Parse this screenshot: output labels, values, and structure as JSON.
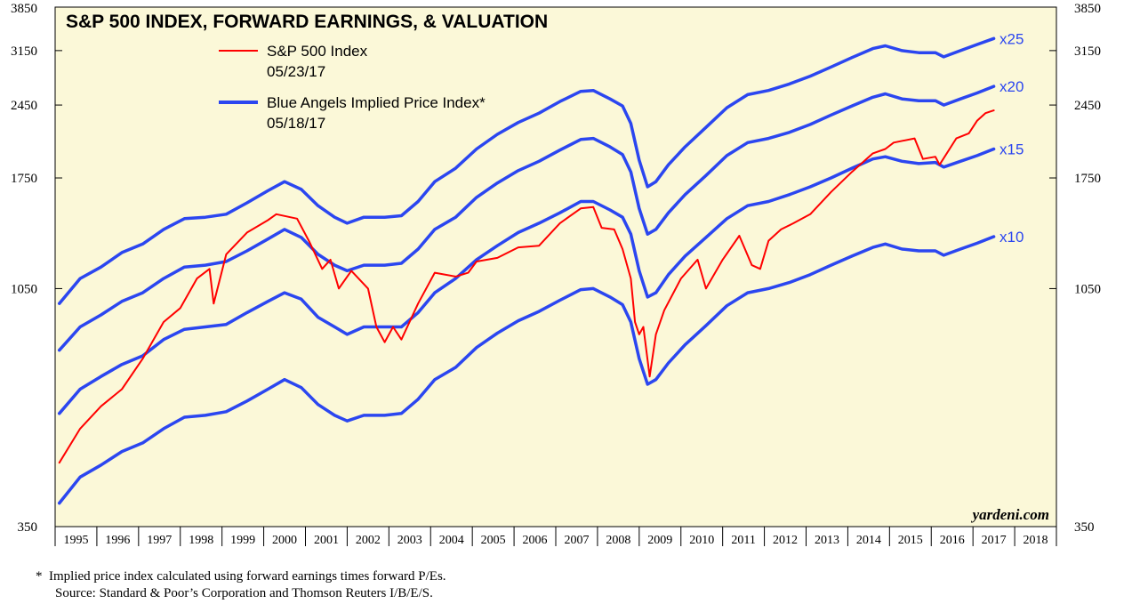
{
  "chart_data": {
    "type": "line",
    "title": "S&P 500 INDEX, FORWARD EARNINGS, & VALUATION",
    "y_scale": "log",
    "ylim": [
      350,
      3850
    ],
    "y_ticks": [
      "3850",
      "3150",
      "2450",
      "1750",
      "1050",
      "350"
    ],
    "x_range": [
      1994.9,
      2018.9
    ],
    "x_tick_labels": [
      "1995",
      "1996",
      "1997",
      "1998",
      "1999",
      "2000",
      "2001",
      "2002",
      "2003",
      "2004",
      "2005",
      "2006",
      "2007",
      "2008",
      "2009",
      "2010",
      "2011",
      "2012",
      "2013",
      "2014",
      "2015",
      "2016",
      "2017",
      "2018"
    ],
    "legend": [
      {
        "name": "S&P 500 Index",
        "date": "05/23/17",
        "color": "#ff0000"
      },
      {
        "name": "Blue Angels Implied Price Index*",
        "date": "05/18/17",
        "color": "#2b46f0"
      }
    ],
    "series": [
      {
        "name": "S&P 500 Index",
        "color": "#ff0000",
        "points": [
          [
            1995.0,
            470
          ],
          [
            1995.5,
            550
          ],
          [
            1996.0,
            610
          ],
          [
            1996.5,
            660
          ],
          [
            1997.0,
            760
          ],
          [
            1997.5,
            900
          ],
          [
            1997.9,
            960
          ],
          [
            1998.3,
            1100
          ],
          [
            1998.6,
            1150
          ],
          [
            1998.7,
            980
          ],
          [
            1999.0,
            1230
          ],
          [
            1999.5,
            1360
          ],
          [
            2000.0,
            1440
          ],
          [
            2000.2,
            1480
          ],
          [
            2000.7,
            1450
          ],
          [
            2001.0,
            1300
          ],
          [
            2001.3,
            1150
          ],
          [
            2001.5,
            1200
          ],
          [
            2001.7,
            1050
          ],
          [
            2002.0,
            1140
          ],
          [
            2002.4,
            1050
          ],
          [
            2002.6,
            880
          ],
          [
            2002.8,
            820
          ],
          [
            2003.0,
            880
          ],
          [
            2003.2,
            830
          ],
          [
            2003.6,
            980
          ],
          [
            2004.0,
            1130
          ],
          [
            2004.5,
            1110
          ],
          [
            2004.8,
            1130
          ],
          [
            2005.0,
            1190
          ],
          [
            2005.5,
            1210
          ],
          [
            2006.0,
            1270
          ],
          [
            2006.5,
            1280
          ],
          [
            2007.0,
            1420
          ],
          [
            2007.5,
            1520
          ],
          [
            2007.8,
            1530
          ],
          [
            2008.0,
            1390
          ],
          [
            2008.3,
            1380
          ],
          [
            2008.5,
            1260
          ],
          [
            2008.7,
            1100
          ],
          [
            2008.8,
            900
          ],
          [
            2008.9,
            850
          ],
          [
            2009.0,
            880
          ],
          [
            2009.15,
            700
          ],
          [
            2009.3,
            850
          ],
          [
            2009.5,
            950
          ],
          [
            2009.9,
            1100
          ],
          [
            2010.3,
            1200
          ],
          [
            2010.5,
            1050
          ],
          [
            2010.9,
            1200
          ],
          [
            2011.3,
            1340
          ],
          [
            2011.6,
            1170
          ],
          [
            2011.8,
            1150
          ],
          [
            2012.0,
            1310
          ],
          [
            2012.3,
            1380
          ],
          [
            2012.6,
            1420
          ],
          [
            2013.0,
            1480
          ],
          [
            2013.5,
            1640
          ],
          [
            2014.0,
            1800
          ],
          [
            2014.5,
            1960
          ],
          [
            2014.8,
            2000
          ],
          [
            2015.0,
            2060
          ],
          [
            2015.5,
            2100
          ],
          [
            2015.7,
            1910
          ],
          [
            2016.0,
            1930
          ],
          [
            2016.1,
            1860
          ],
          [
            2016.5,
            2100
          ],
          [
            2016.8,
            2150
          ],
          [
            2017.0,
            2280
          ],
          [
            2017.2,
            2360
          ],
          [
            2017.4,
            2390
          ]
        ]
      },
      {
        "name": "x25",
        "color": "#2b46f0",
        "points": [
          [
            1995.0,
            980
          ],
          [
            1995.5,
            1100
          ],
          [
            1996.0,
            1160
          ],
          [
            1996.5,
            1240
          ],
          [
            1997.0,
            1290
          ],
          [
            1997.5,
            1380
          ],
          [
            1998.0,
            1450
          ],
          [
            1998.5,
            1460
          ],
          [
            1999.0,
            1480
          ],
          [
            1999.5,
            1560
          ],
          [
            2000.0,
            1650
          ],
          [
            2000.4,
            1720
          ],
          [
            2000.8,
            1660
          ],
          [
            2001.2,
            1540
          ],
          [
            2001.6,
            1460
          ],
          [
            2001.9,
            1420
          ],
          [
            2002.3,
            1460
          ],
          [
            2002.8,
            1460
          ],
          [
            2003.2,
            1470
          ],
          [
            2003.6,
            1570
          ],
          [
            2004.0,
            1720
          ],
          [
            2004.5,
            1830
          ],
          [
            2005.0,
            2000
          ],
          [
            2005.5,
            2140
          ],
          [
            2006.0,
            2260
          ],
          [
            2006.5,
            2360
          ],
          [
            2007.0,
            2490
          ],
          [
            2007.5,
            2610
          ],
          [
            2007.8,
            2620
          ],
          [
            2008.2,
            2520
          ],
          [
            2008.5,
            2440
          ],
          [
            2008.7,
            2250
          ],
          [
            2008.9,
            1900
          ],
          [
            2009.1,
            1680
          ],
          [
            2009.3,
            1720
          ],
          [
            2009.6,
            1860
          ],
          [
            2010.0,
            2020
          ],
          [
            2010.5,
            2210
          ],
          [
            2011.0,
            2420
          ],
          [
            2011.5,
            2570
          ],
          [
            2012.0,
            2620
          ],
          [
            2012.5,
            2700
          ],
          [
            2013.0,
            2800
          ],
          [
            2013.5,
            2920
          ],
          [
            2014.0,
            3050
          ],
          [
            2014.5,
            3180
          ],
          [
            2014.8,
            3220
          ],
          [
            2015.2,
            3150
          ],
          [
            2015.6,
            3120
          ],
          [
            2016.0,
            3120
          ],
          [
            2016.2,
            3060
          ],
          [
            2016.6,
            3150
          ],
          [
            2017.0,
            3240
          ],
          [
            2017.4,
            3330
          ]
        ]
      },
      {
        "name": "x20",
        "color": "#2b46f0",
        "points": [
          [
            1995.0,
            790
          ],
          [
            1995.5,
            880
          ],
          [
            1996.0,
            930
          ],
          [
            1996.5,
            990
          ],
          [
            1997.0,
            1030
          ],
          [
            1997.5,
            1100
          ],
          [
            1998.0,
            1160
          ],
          [
            1998.5,
            1170
          ],
          [
            1999.0,
            1190
          ],
          [
            1999.5,
            1250
          ],
          [
            2000.0,
            1320
          ],
          [
            2000.4,
            1380
          ],
          [
            2000.8,
            1330
          ],
          [
            2001.2,
            1230
          ],
          [
            2001.6,
            1170
          ],
          [
            2001.9,
            1140
          ],
          [
            2002.3,
            1170
          ],
          [
            2002.8,
            1170
          ],
          [
            2003.2,
            1180
          ],
          [
            2003.6,
            1260
          ],
          [
            2004.0,
            1380
          ],
          [
            2004.5,
            1460
          ],
          [
            2005.0,
            1600
          ],
          [
            2005.5,
            1710
          ],
          [
            2006.0,
            1810
          ],
          [
            2006.5,
            1890
          ],
          [
            2007.0,
            1990
          ],
          [
            2007.5,
            2090
          ],
          [
            2007.8,
            2100
          ],
          [
            2008.2,
            2020
          ],
          [
            2008.5,
            1950
          ],
          [
            2008.7,
            1800
          ],
          [
            2008.9,
            1520
          ],
          [
            2009.1,
            1350
          ],
          [
            2009.3,
            1380
          ],
          [
            2009.6,
            1490
          ],
          [
            2010.0,
            1620
          ],
          [
            2010.5,
            1770
          ],
          [
            2011.0,
            1940
          ],
          [
            2011.5,
            2060
          ],
          [
            2012.0,
            2100
          ],
          [
            2012.5,
            2160
          ],
          [
            2013.0,
            2240
          ],
          [
            2013.5,
            2340
          ],
          [
            2014.0,
            2440
          ],
          [
            2014.5,
            2540
          ],
          [
            2014.8,
            2580
          ],
          [
            2015.2,
            2520
          ],
          [
            2015.6,
            2500
          ],
          [
            2016.0,
            2500
          ],
          [
            2016.2,
            2450
          ],
          [
            2016.6,
            2520
          ],
          [
            2017.0,
            2590
          ],
          [
            2017.4,
            2670
          ]
        ]
      },
      {
        "name": "x15",
        "color": "#2b46f0",
        "points": [
          [
            1995.0,
            590
          ],
          [
            1995.5,
            660
          ],
          [
            1996.0,
            700
          ],
          [
            1996.5,
            740
          ],
          [
            1997.0,
            770
          ],
          [
            1997.5,
            830
          ],
          [
            1998.0,
            870
          ],
          [
            1998.5,
            880
          ],
          [
            1999.0,
            890
          ],
          [
            1999.5,
            940
          ],
          [
            2000.0,
            990
          ],
          [
            2000.4,
            1030
          ],
          [
            2000.8,
            1000
          ],
          [
            2001.2,
            920
          ],
          [
            2001.6,
            880
          ],
          [
            2001.9,
            850
          ],
          [
            2002.3,
            880
          ],
          [
            2002.8,
            880
          ],
          [
            2003.2,
            880
          ],
          [
            2003.6,
            940
          ],
          [
            2004.0,
            1030
          ],
          [
            2004.5,
            1100
          ],
          [
            2005.0,
            1200
          ],
          [
            2005.5,
            1280
          ],
          [
            2006.0,
            1360
          ],
          [
            2006.5,
            1420
          ],
          [
            2007.0,
            1490
          ],
          [
            2007.5,
            1570
          ],
          [
            2007.8,
            1570
          ],
          [
            2008.2,
            1510
          ],
          [
            2008.5,
            1460
          ],
          [
            2008.7,
            1350
          ],
          [
            2008.9,
            1140
          ],
          [
            2009.1,
            1010
          ],
          [
            2009.3,
            1030
          ],
          [
            2009.6,
            1120
          ],
          [
            2010.0,
            1220
          ],
          [
            2010.5,
            1330
          ],
          [
            2011.0,
            1450
          ],
          [
            2011.5,
            1540
          ],
          [
            2012.0,
            1570
          ],
          [
            2012.5,
            1620
          ],
          [
            2013.0,
            1680
          ],
          [
            2013.5,
            1750
          ],
          [
            2014.0,
            1830
          ],
          [
            2014.5,
            1910
          ],
          [
            2014.8,
            1930
          ],
          [
            2015.2,
            1890
          ],
          [
            2015.6,
            1870
          ],
          [
            2016.0,
            1880
          ],
          [
            2016.2,
            1840
          ],
          [
            2016.6,
            1890
          ],
          [
            2017.0,
            1940
          ],
          [
            2017.4,
            2000
          ]
        ]
      },
      {
        "name": "x10",
        "color": "#2b46f0",
        "points": [
          [
            1995.0,
            390
          ],
          [
            1995.5,
            440
          ],
          [
            1996.0,
            465
          ],
          [
            1996.5,
            495
          ],
          [
            1997.0,
            515
          ],
          [
            1997.5,
            550
          ],
          [
            1998.0,
            580
          ],
          [
            1998.5,
            585
          ],
          [
            1999.0,
            595
          ],
          [
            1999.5,
            625
          ],
          [
            2000.0,
            660
          ],
          [
            2000.4,
            690
          ],
          [
            2000.8,
            665
          ],
          [
            2001.2,
            615
          ],
          [
            2001.6,
            585
          ],
          [
            2001.9,
            570
          ],
          [
            2002.3,
            585
          ],
          [
            2002.8,
            585
          ],
          [
            2003.2,
            590
          ],
          [
            2003.6,
            630
          ],
          [
            2004.0,
            690
          ],
          [
            2004.5,
            730
          ],
          [
            2005.0,
            800
          ],
          [
            2005.5,
            855
          ],
          [
            2006.0,
            905
          ],
          [
            2006.5,
            945
          ],
          [
            2007.0,
            995
          ],
          [
            2007.5,
            1045
          ],
          [
            2007.8,
            1050
          ],
          [
            2008.2,
            1010
          ],
          [
            2008.5,
            975
          ],
          [
            2008.7,
            900
          ],
          [
            2008.9,
            760
          ],
          [
            2009.1,
            675
          ],
          [
            2009.3,
            690
          ],
          [
            2009.6,
            745
          ],
          [
            2010.0,
            810
          ],
          [
            2010.5,
            885
          ],
          [
            2011.0,
            970
          ],
          [
            2011.5,
            1030
          ],
          [
            2012.0,
            1050
          ],
          [
            2012.5,
            1080
          ],
          [
            2013.0,
            1120
          ],
          [
            2013.5,
            1170
          ],
          [
            2014.0,
            1220
          ],
          [
            2014.5,
            1270
          ],
          [
            2014.8,
            1290
          ],
          [
            2015.2,
            1260
          ],
          [
            2015.6,
            1250
          ],
          [
            2016.0,
            1250
          ],
          [
            2016.2,
            1225
          ],
          [
            2016.6,
            1260
          ],
          [
            2017.0,
            1295
          ],
          [
            2017.4,
            1335
          ]
        ]
      }
    ],
    "line_labels": [
      {
        "text": "x25",
        "series": "x25"
      },
      {
        "text": "x20",
        "series": "x20"
      },
      {
        "text": "x15",
        "series": "x15"
      },
      {
        "text": "x10",
        "series": "x10"
      }
    ],
    "watermark": "yardeni.com"
  },
  "footnote": {
    "star": "*",
    "line1": "Implied price index calculated using forward earnings times forward P/Es.",
    "line2": "Source: Standard & Poor’s Corporation and Thomson Reuters I/B/E/S."
  }
}
